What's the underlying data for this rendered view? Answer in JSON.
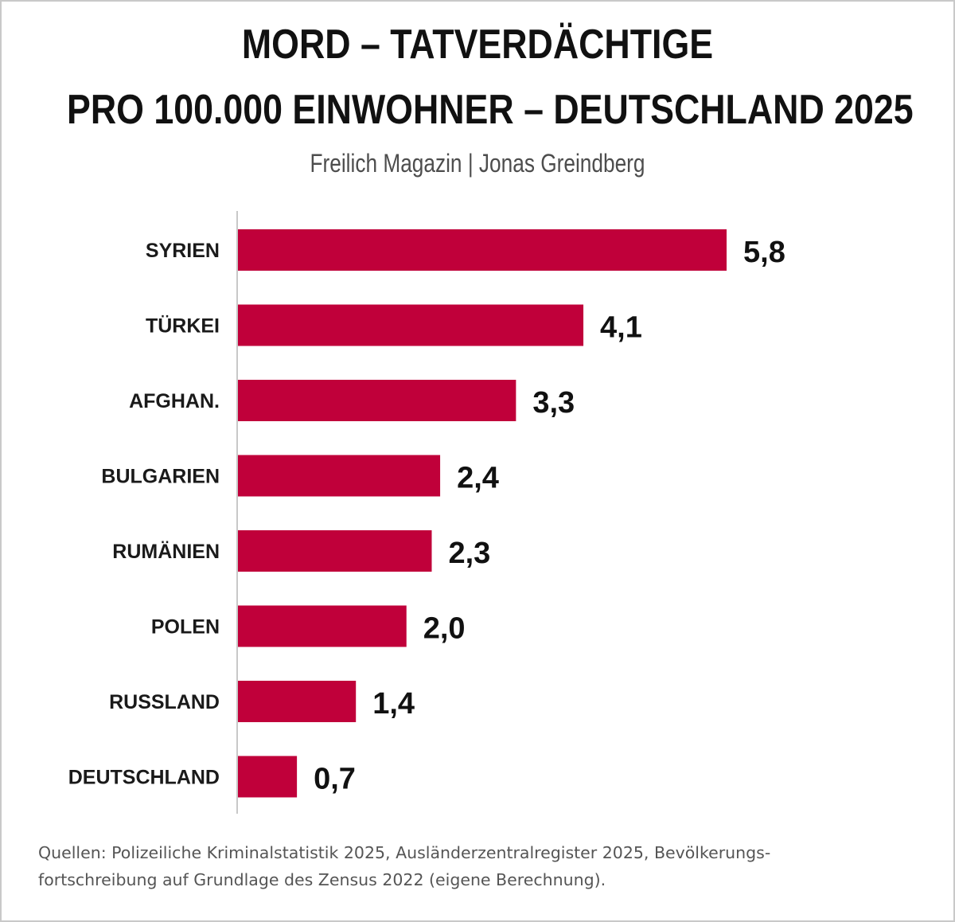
{
  "colors": {
    "bar": "#c0003a",
    "axis": "#c8c8c8",
    "title": "#111111",
    "subtitle": "#4d4d4d",
    "footer": "#555555"
  },
  "header": {
    "title_line1": "MORD – TATVERDÄCHTIGE",
    "title_line2": "PRO 100.000 EINWOHNER – DEUTSCHLAND 2025",
    "subtitle": "Freilich Magazin | Jonas Greindberg"
  },
  "footer": {
    "line1": "Quellen: Polizeiliche Kriminalstatistik 2025, Ausländerzentralregister 2025, Bevölkerungs-",
    "line2": "fortschreibung auf Grundlage des Zensus 2022 (eigene Berechnung)."
  },
  "chart_data": {
    "type": "bar",
    "orientation": "horizontal",
    "title": "MORD – TATVERDÄCHTIGE PRO 100.000 EINWOHNER – DEUTSCHLAND 2025",
    "categories": [
      "SYRIEN",
      "TÜRKEI",
      "AFGHAN.",
      "BULGARIEN",
      "RUMÄNIEN",
      "POLEN",
      "RUSSLAND",
      "DEUTSCHLAND"
    ],
    "values": [
      5.8,
      4.1,
      3.3,
      2.4,
      2.3,
      2.0,
      1.4,
      0.7
    ],
    "value_labels": [
      "5,8",
      "4,1",
      "3,3",
      "2,4",
      "2,3",
      "2,0",
      "1,4",
      "0,7"
    ],
    "xlim": [
      0,
      5.8
    ],
    "grid": false,
    "legend": "none"
  }
}
